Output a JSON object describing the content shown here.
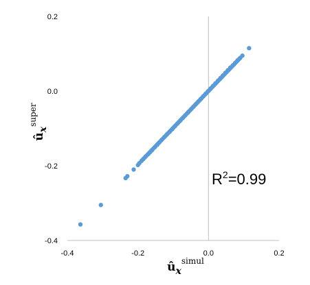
{
  "chart_data": {
    "type": "scatter",
    "title": "",
    "xlabel": {
      "main": "û",
      "sub": "x",
      "sup": "simul"
    },
    "ylabel": {
      "main": "û",
      "sub": "x",
      "sup": "super"
    },
    "xlim": [
      -0.4,
      0.2
    ],
    "ylim": [
      -0.4,
      0.2
    ],
    "x_ticks": [
      "-0.4",
      "-0.2",
      "0.0",
      "0.2"
    ],
    "y_ticks": [
      "0.2",
      "0.0",
      "-0.2",
      "-0.4"
    ],
    "grid": false,
    "legend": "none",
    "marker_color": "#5b9bd5",
    "annotation": {
      "prefix": "R",
      "sup": "2",
      "suffix": "=0.99"
    },
    "series": [
      {
        "x": [
          -0.363,
          -0.305,
          -0.235,
          -0.23,
          -0.212,
          -0.2,
          -0.196,
          -0.19,
          -0.185,
          -0.178,
          -0.17,
          -0.165,
          -0.16,
          -0.152,
          -0.145,
          -0.14,
          -0.133,
          -0.125,
          -0.118,
          -0.11,
          -0.103,
          -0.095,
          -0.088,
          -0.08,
          -0.073,
          -0.066,
          -0.058,
          -0.05,
          -0.043,
          -0.036,
          -0.029,
          -0.022,
          -0.015,
          -0.008,
          -0.001,
          0.006,
          0.013,
          0.02,
          0.027,
          0.034,
          0.041,
          0.048,
          0.055,
          0.062,
          0.069,
          0.076,
          0.083,
          0.09,
          0.096,
          0.115
        ],
        "y": [
          -0.357,
          -0.305,
          -0.233,
          -0.228,
          -0.21,
          -0.198,
          -0.193,
          -0.187,
          -0.182,
          -0.175,
          -0.168,
          -0.163,
          -0.158,
          -0.15,
          -0.143,
          -0.138,
          -0.131,
          -0.123,
          -0.116,
          -0.109,
          -0.102,
          -0.094,
          -0.087,
          -0.079,
          -0.072,
          -0.065,
          -0.057,
          -0.049,
          -0.042,
          -0.035,
          -0.028,
          -0.021,
          -0.014,
          -0.007,
          0.0,
          0.007,
          0.014,
          0.021,
          0.028,
          0.035,
          0.042,
          0.049,
          0.056,
          0.063,
          0.069,
          0.076,
          0.083,
          0.089,
          0.095,
          0.115
        ]
      }
    ]
  }
}
